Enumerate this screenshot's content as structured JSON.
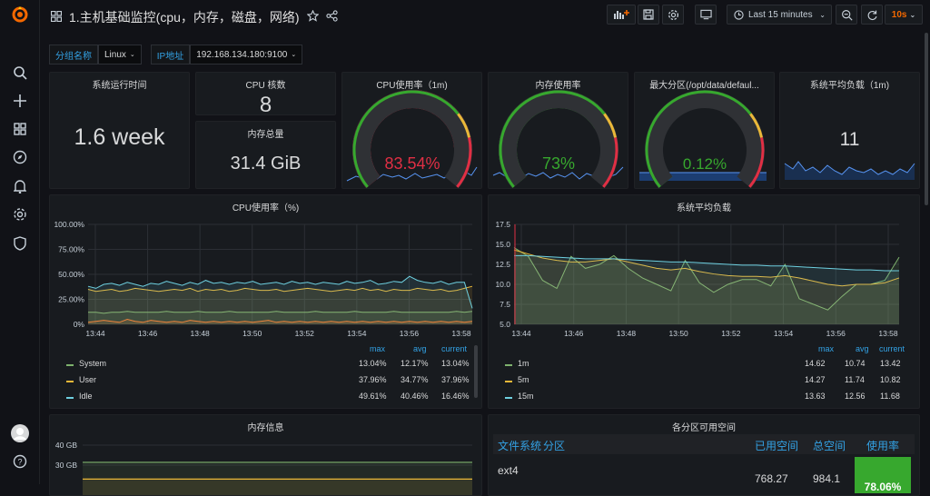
{
  "app": {
    "title": "1.主机基础监控(cpu，内存，磁盘，网络)",
    "accent": "#f46800",
    "bg": "#111217",
    "panel_bg": "#181b1f"
  },
  "topbar": {
    "time_range": "Last 15 minutes",
    "refresh": "10s",
    "icons": [
      "add-panel-icon",
      "save-icon",
      "settings-icon",
      "tv-icon",
      "clock-icon",
      "zoom-out-icon",
      "refresh-icon"
    ]
  },
  "sidebar": {
    "icons": [
      "grafana-logo",
      "search-icon",
      "plus-icon",
      "dashboards-icon",
      "explore-icon",
      "alert-bell-icon",
      "gear-icon",
      "shield-icon",
      "avatar",
      "help-icon"
    ]
  },
  "variables": [
    {
      "label": "分组名称",
      "value": "Linux"
    },
    {
      "label": "IP地址",
      "value": "192.168.134.180:9100"
    }
  ],
  "stats": {
    "uptime": {
      "title": "系统运行时间",
      "value": "1.6 week"
    },
    "cpu_cores": {
      "title": "CPU 核数",
      "value": "8"
    },
    "mem_total": {
      "title": "内存总量",
      "value": "31.4 GiB"
    },
    "load": {
      "title": "系统平均负载（1m)",
      "value": "11"
    }
  },
  "gauges": [
    {
      "title": "CPU使用率（1m)",
      "value_text": "83.54%",
      "value": 83.54,
      "color": "#e02f44"
    },
    {
      "title": "内存使用率",
      "value_text": "73%",
      "value": 73,
      "color": "#37a82e"
    },
    {
      "title": "最大分区(/opt/data/defaul...",
      "value_text": "0.12%",
      "value": 0.12,
      "color": "#37a82e"
    }
  ],
  "cpu_chart": {
    "title": "CPU使用率（%)",
    "legend_headers": [
      "max",
      "avg",
      "current"
    ],
    "chart_data": {
      "type": "line",
      "ylim": [
        0,
        100
      ],
      "yticks": [
        "100.00%",
        "75.00%",
        "50.00%",
        "25.00%",
        "0%"
      ],
      "xticks": [
        "13:44",
        "13:46",
        "13:48",
        "13:50",
        "13:52",
        "13:54",
        "13:56",
        "13:58"
      ],
      "series": [
        {
          "name": "System",
          "color": "#7eb26d",
          "values": [
            12,
            12,
            11,
            12,
            12,
            13,
            12,
            12,
            12,
            12,
            13,
            12,
            12,
            12,
            13,
            12,
            12,
            12,
            13,
            12,
            12,
            12,
            12,
            12,
            13,
            12,
            12,
            12,
            12,
            13,
            12,
            12,
            12,
            12,
            13,
            12,
            12,
            12,
            12,
            13,
            12,
            12,
            12,
            12,
            12,
            12,
            12,
            13,
            12,
            13
          ],
          "max": "13.04%",
          "avg": "12.17%",
          "current": "13.04%"
        },
        {
          "name": "User",
          "color": "#eab839",
          "values": [
            35,
            33,
            34,
            35,
            33,
            34,
            36,
            35,
            34,
            33,
            34,
            35,
            34,
            36,
            33,
            35,
            34,
            35,
            33,
            34,
            36,
            35,
            34,
            34,
            35,
            33,
            34,
            35,
            36,
            35,
            34,
            33,
            34,
            35,
            34,
            36,
            34,
            35,
            33,
            35,
            34,
            34,
            36,
            35,
            34,
            35,
            33,
            34,
            36,
            38
          ],
          "max": "37.96%",
          "avg": "34.77%",
          "current": "37.96%"
        },
        {
          "name": "Idle",
          "color": "#6ed0e0",
          "values": [
            38,
            36,
            40,
            41,
            39,
            42,
            40,
            38,
            41,
            40,
            43,
            41,
            39,
            42,
            40,
            44,
            41,
            42,
            40,
            42,
            41,
            43,
            40,
            41,
            42,
            40,
            43,
            41,
            42,
            40,
            42,
            41,
            40,
            43,
            41,
            42,
            44,
            40,
            41,
            43,
            42,
            48,
            44,
            42,
            41,
            43,
            40,
            42,
            42,
            16
          ],
          "max": "49.61%",
          "avg": "40.46%",
          "current": "16.46%"
        },
        {
          "name": "",
          "color": "#ef843c",
          "values": [
            2,
            3,
            4,
            3,
            2,
            5,
            3,
            2,
            4,
            3,
            2,
            3,
            2,
            4,
            3,
            2,
            3,
            2,
            3,
            2,
            3,
            2,
            3,
            4,
            2,
            3,
            2,
            3,
            2,
            3,
            2,
            3,
            2,
            3,
            2,
            3,
            2,
            3,
            2,
            3,
            2,
            3,
            2,
            3,
            2,
            3,
            2,
            3,
            2,
            3
          ]
        }
      ]
    }
  },
  "load_chart": {
    "title": "系统平均负载",
    "legend_headers": [
      "max",
      "avg",
      "current"
    ],
    "chart_data": {
      "type": "line",
      "ylim": [
        5,
        17.5
      ],
      "yticks": [
        "17.5",
        "15.0",
        "12.5",
        "10.0",
        "7.5",
        "5.0"
      ],
      "xticks": [
        "13:44",
        "13:46",
        "13:48",
        "13:50",
        "13:52",
        "13:54",
        "13:56",
        "13:58"
      ],
      "series": [
        {
          "name": "1m",
          "color": "#7eb26d",
          "values": [
            14.6,
            13.5,
            10.5,
            9.5,
            13.5,
            12,
            12.5,
            13.6,
            12,
            10.8,
            10,
            9.2,
            13,
            10.2,
            9,
            10,
            10.6,
            10.6,
            9.8,
            12.5,
            8.2,
            7.5,
            6.8,
            8.5,
            10,
            10,
            10.5,
            13.4
          ],
          "max": "14.62",
          "avg": "10.74",
          "current": "13.42"
        },
        {
          "name": "5m",
          "color": "#eab839",
          "values": [
            14.3,
            13.8,
            13.3,
            13,
            12.8,
            12.8,
            13,
            13.2,
            12.8,
            12.4,
            12,
            11.8,
            12,
            11.6,
            11.3,
            11.1,
            11,
            11,
            10.9,
            11.1,
            10.8,
            10.4,
            10,
            9.8,
            10,
            10,
            10.2,
            10.8
          ],
          "max": "14.27",
          "avg": "11.74",
          "current": "10.82"
        },
        {
          "name": "15m",
          "color": "#6ed0e0",
          "values": [
            13.6,
            13.6,
            13.5,
            13.4,
            13.3,
            13.2,
            13.2,
            13.2,
            13.1,
            13,
            12.9,
            12.8,
            12.8,
            12.7,
            12.6,
            12.5,
            12.4,
            12.4,
            12.3,
            12.3,
            12.2,
            12.1,
            12,
            11.9,
            11.8,
            11.8,
            11.7,
            11.7
          ],
          "max": "13.63",
          "avg": "12.56",
          "current": "11.68"
        }
      ]
    }
  },
  "mem_chart": {
    "title": "内存信息",
    "chart_data": {
      "type": "line",
      "yticks": [
        "40 GB",
        "30 GB"
      ],
      "series": [
        {
          "color": "#7eb26d",
          "values": [
            31.4
          ]
        },
        {
          "color": "#eab839",
          "values": [
            23
          ]
        }
      ]
    }
  },
  "disk_table": {
    "title": "各分区可用空间",
    "headers": [
      "文件系统",
      "分区",
      "已用空间",
      "总空间",
      "使用率"
    ],
    "rows": [
      {
        "fs": "ext4",
        "used": "768.27",
        "total": "984.1",
        "pct": "78.06%"
      }
    ]
  }
}
